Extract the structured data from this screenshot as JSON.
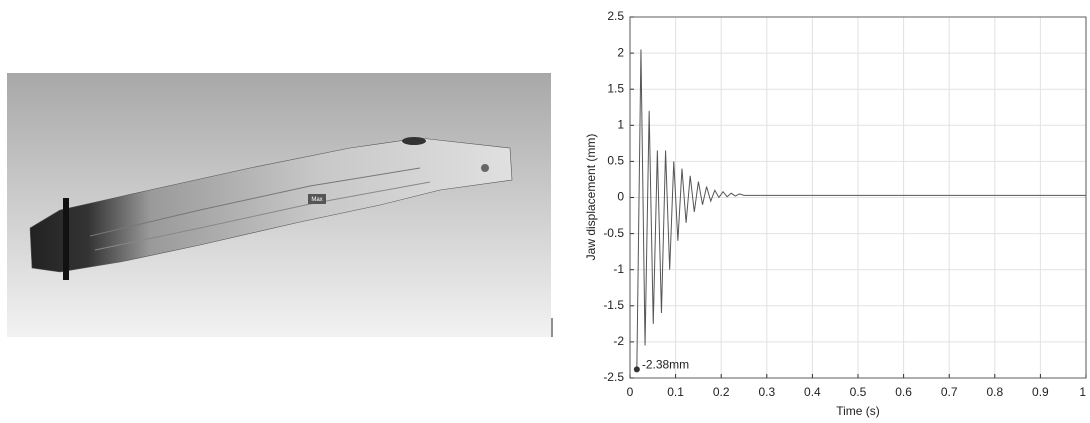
{
  "render": {
    "label": "Max"
  },
  "chart_data": {
    "type": "line",
    "xlabel": "Time (s)",
    "ylabel": "Jaw displacement (mm)",
    "x": [
      0.015,
      0.024,
      0.033,
      0.042,
      0.051,
      0.06,
      0.069,
      0.078,
      0.087,
      0.096,
      0.105,
      0.114,
      0.123,
      0.132,
      0.141,
      0.15,
      0.159,
      0.168,
      0.177,
      0.186,
      0.195,
      0.204,
      0.213,
      0.222,
      0.231,
      0.24,
      0.25,
      0.3,
      1.0
    ],
    "values": [
      -2.38,
      2.05,
      -2.05,
      1.2,
      -1.75,
      0.65,
      -1.6,
      0.65,
      -1.0,
      0.5,
      -0.6,
      0.4,
      -0.35,
      0.3,
      -0.2,
      0.22,
      -0.1,
      0.15,
      -0.05,
      0.1,
      0,
      0.08,
      0.01,
      0.06,
      0.02,
      0.05,
      0.03,
      0.03,
      0.03
    ],
    "color": "#555555",
    "annotation": {
      "x": 0.015,
      "y": -2.38,
      "label": "-2.38mm"
    },
    "xlim": [
      0,
      1
    ],
    "ylim": [
      -2.5,
      2.5
    ],
    "xticks": [
      0,
      0.1,
      0.2,
      0.3,
      0.4,
      0.5,
      0.6,
      0.7,
      0.8,
      0.9,
      1
    ],
    "yticks": [
      -2.5,
      -2,
      -1.5,
      -1,
      -0.5,
      0,
      0.5,
      1,
      1.5,
      2,
      2.5
    ],
    "grid": true
  }
}
